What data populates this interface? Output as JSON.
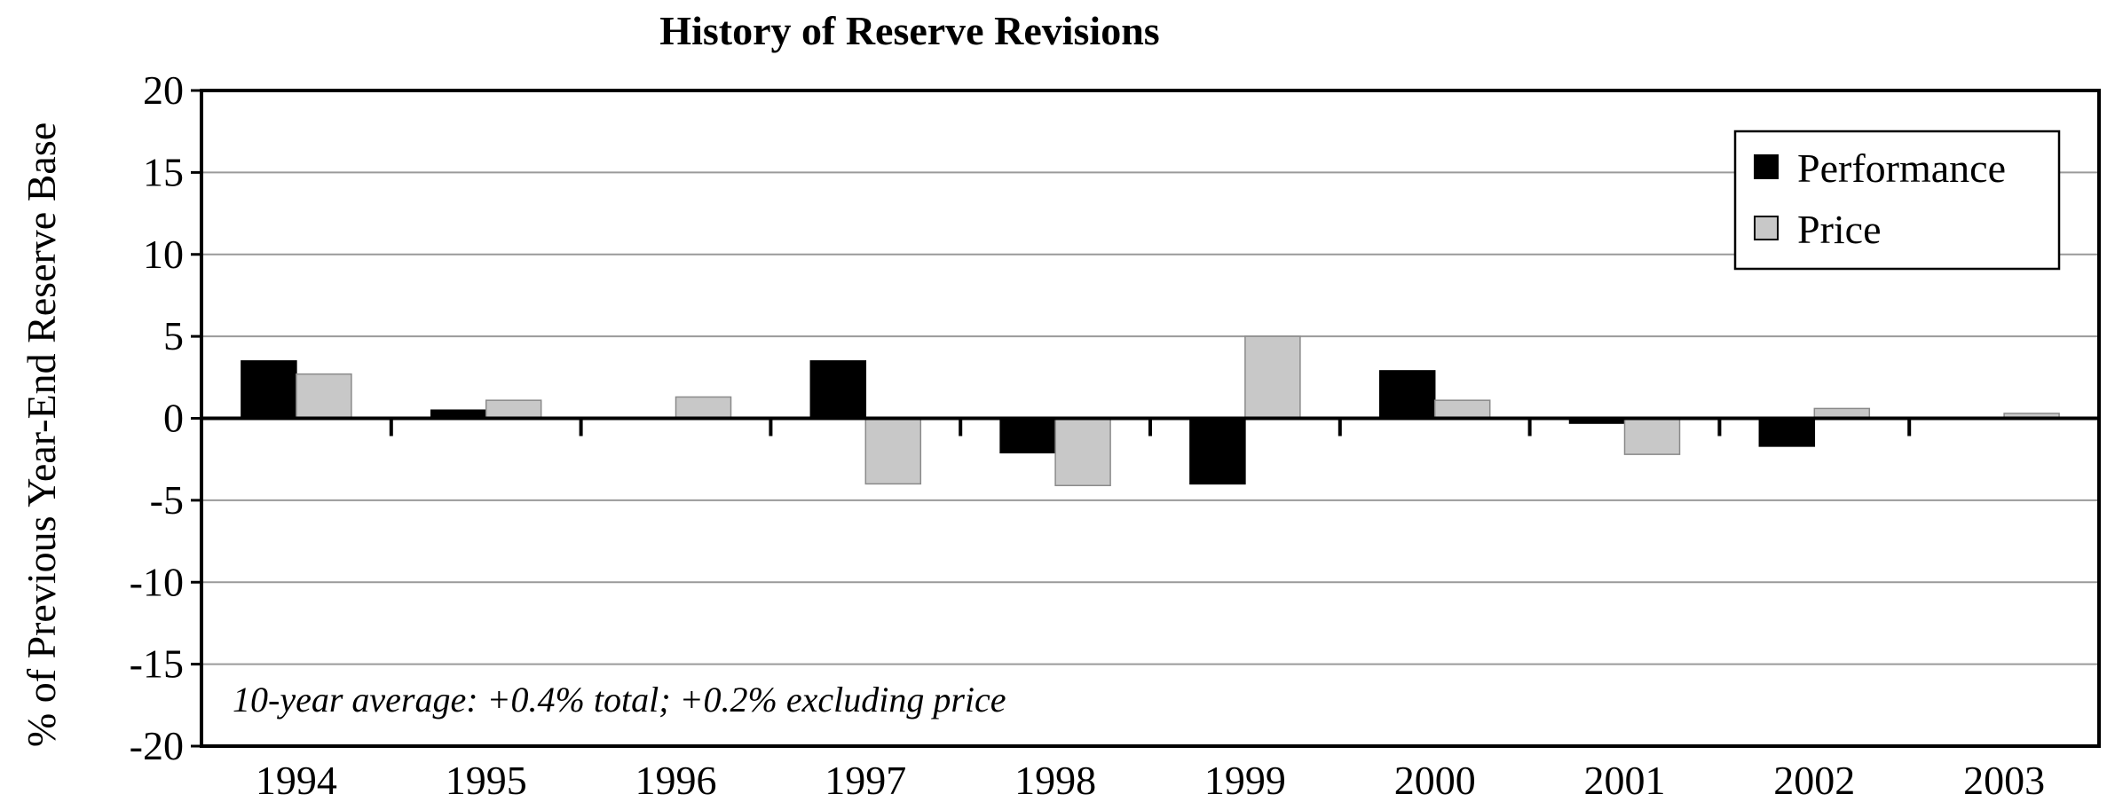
{
  "chart_data": {
    "type": "bar",
    "title": "History of Reserve Revisions",
    "xlabel": "",
    "ylabel": "% of Previous Year-End Reserve Base",
    "categories": [
      "1994",
      "1995",
      "1996",
      "1997",
      "1998",
      "1999",
      "2000",
      "2001",
      "2002",
      "2003"
    ],
    "series": [
      {
        "name": "Performance",
        "color": "#000000",
        "values": [
          3.5,
          0.5,
          0.0,
          3.5,
          -2.1,
          -4.0,
          2.9,
          -0.3,
          -1.7,
          0.0
        ]
      },
      {
        "name": "Price",
        "color": "#c8c8c8",
        "values": [
          2.7,
          1.1,
          1.3,
          -4.0,
          -4.1,
          5.0,
          1.1,
          -2.2,
          0.6,
          0.3
        ]
      }
    ],
    "ylim": [
      -20,
      20
    ],
    "yticks": [
      "20",
      "15",
      "10",
      "5",
      "0",
      "-5",
      "-10",
      "-15",
      "-20"
    ],
    "ytick_values": [
      20,
      15,
      10,
      5,
      0,
      -5,
      -10,
      -15,
      -20
    ],
    "grid": true,
    "legend_position": "top-right",
    "annotation": "10-year average: +0.4% total; +0.2% excluding price"
  }
}
